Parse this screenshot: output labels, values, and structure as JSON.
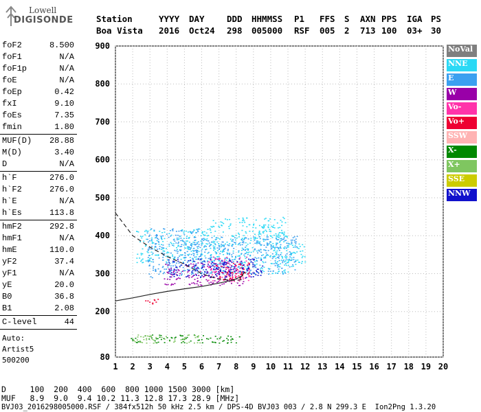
{
  "logo": {
    "line1": "Lowell",
    "line2": "DIGISONDE"
  },
  "header": {
    "row1": [
      "Station",
      "YYYY",
      "DAY",
      "DDD",
      "HHMMSS",
      "P1",
      "FFS",
      "S",
      "AXN",
      "PPS",
      "IGA",
      "PS"
    ],
    "row2": [
      "Boa Vista",
      "2016",
      "Oct24",
      "298",
      "005000",
      "RSF",
      "005",
      "2",
      "713",
      "100",
      "03+",
      "30"
    ]
  },
  "params_groups": [
    [
      [
        "foF2",
        "8.500"
      ],
      [
        "foF1",
        "N/A"
      ],
      [
        "foF1p",
        "N/A"
      ],
      [
        "foE",
        "N/A"
      ],
      [
        "foEp",
        "0.42"
      ],
      [
        "fxI",
        "9.10"
      ],
      [
        "foEs",
        "7.35"
      ],
      [
        "fmin",
        "1.80"
      ]
    ],
    [
      [
        "MUF(D)",
        "28.88"
      ],
      [
        "M(D)",
        "3.40"
      ],
      [
        "D",
        "N/A"
      ]
    ],
    [
      [
        "h`F",
        "276.0"
      ],
      [
        "h`F2",
        "276.0"
      ],
      [
        "h`E",
        "N/A"
      ],
      [
        "h`Es",
        "113.8"
      ]
    ],
    [
      [
        "hmF2",
        "292.8"
      ],
      [
        "hmF1",
        "N/A"
      ],
      [
        "hmE",
        "110.0"
      ],
      [
        "yF2",
        "37.4"
      ],
      [
        "yF1",
        "N/A"
      ],
      [
        "yE",
        "20.0"
      ],
      [
        "B0",
        "36.8"
      ],
      [
        "B1",
        "2.08"
      ]
    ],
    [
      [
        "C-level",
        "44"
      ]
    ]
  ],
  "autoscaling": {
    "line1": "Auto:",
    "line2": "Artist5",
    "line3": "500200"
  },
  "legend": [
    {
      "label": "NoVal",
      "color": "#7f7f7f"
    },
    {
      "label": "NNE",
      "color": "#2bd9f5"
    },
    {
      "label": "E",
      "color": "#3ba0f0"
    },
    {
      "label": "W",
      "color": "#9900a8"
    },
    {
      "label": "Vo-",
      "color": "#ff33aa"
    },
    {
      "label": "Vo+",
      "color": "#ee0033"
    },
    {
      "label": "SSW",
      "color": "#ffb3b3"
    },
    {
      "label": "X-",
      "color": "#008800"
    },
    {
      "label": "X+",
      "color": "#7fc660"
    },
    {
      "label": "SSE",
      "color": "#cccc00"
    },
    {
      "label": "NNW",
      "color": "#1111cc"
    }
  ],
  "chart_data": {
    "type": "scatter",
    "xlim": [
      1,
      20
    ],
    "ylim": [
      80,
      900
    ],
    "x_ticks": [
      1,
      2,
      3,
      4,
      5,
      6,
      7,
      8,
      9,
      10,
      11,
      12,
      13,
      14,
      15,
      16,
      17,
      18,
      19,
      20
    ],
    "y_ticks": [
      80,
      200,
      300,
      400,
      500,
      600,
      700,
      800,
      900
    ],
    "series": [
      {
        "name": "NNE",
        "color": "#2bd9f5",
        "regions": [
          [
            2.2,
            6.5,
            330,
            420
          ],
          [
            6.5,
            11,
            300,
            450
          ],
          [
            10,
            12,
            320,
            380
          ]
        ]
      },
      {
        "name": "E",
        "color": "#3ba0f0",
        "regions": [
          [
            5.5,
            11.5,
            300,
            400
          ],
          [
            2.8,
            6,
            290,
            420
          ]
        ]
      },
      {
        "name": "W",
        "color": "#9900a8",
        "regions": [
          [
            3.8,
            8.5,
            270,
            330
          ]
        ]
      },
      {
        "name": "Vo-",
        "color": "#ff33aa",
        "regions": [
          [
            6.3,
            8.8,
            280,
            345
          ]
        ]
      },
      {
        "name": "Vo+",
        "color": "#ee0033",
        "regions": [
          [
            6.8,
            8.8,
            285,
            330
          ],
          [
            2.6,
            3.5,
            220,
            238
          ]
        ]
      },
      {
        "name": "X-",
        "color": "#008800",
        "regions": [
          [
            1.8,
            8.2,
            118,
            140
          ]
        ]
      },
      {
        "name": "X+",
        "color": "#7fc660",
        "regions": [
          [
            2,
            6,
            118,
            140
          ]
        ]
      },
      {
        "name": "NNW",
        "color": "#1111cc",
        "regions": [
          [
            4,
            9.5,
            290,
            340
          ]
        ]
      }
    ],
    "dashed_curve": [
      [
        1,
        460
      ],
      [
        2,
        400
      ],
      [
        3,
        370
      ],
      [
        4,
        345
      ],
      [
        5,
        325
      ],
      [
        6,
        300
      ],
      [
        7,
        285
      ],
      [
        8,
        282
      ],
      [
        8.4,
        285
      ]
    ],
    "solid_curve": [
      [
        1,
        228
      ],
      [
        2,
        236
      ],
      [
        3,
        245
      ],
      [
        4,
        253
      ],
      [
        5,
        260
      ],
      [
        6,
        266
      ],
      [
        7,
        275
      ],
      [
        7.8,
        283
      ],
      [
        8.3,
        292
      ],
      [
        8.5,
        305
      ]
    ]
  },
  "footer": {
    "line1": "D     100  200  400  600  800 1000 1500 3000 [km]",
    "line2": "MUF   8.9  9.0  9.4 10.2 11.3 12.8 17.3 28.9 [MHz]",
    "line3": "BVJ03_2016298005000.RSF / 384fx512h 50 kHz 2.5 km / DPS-4D BVJ03 003 / 2.8 N 299.3 E  Ion2Png 1.3.20"
  }
}
